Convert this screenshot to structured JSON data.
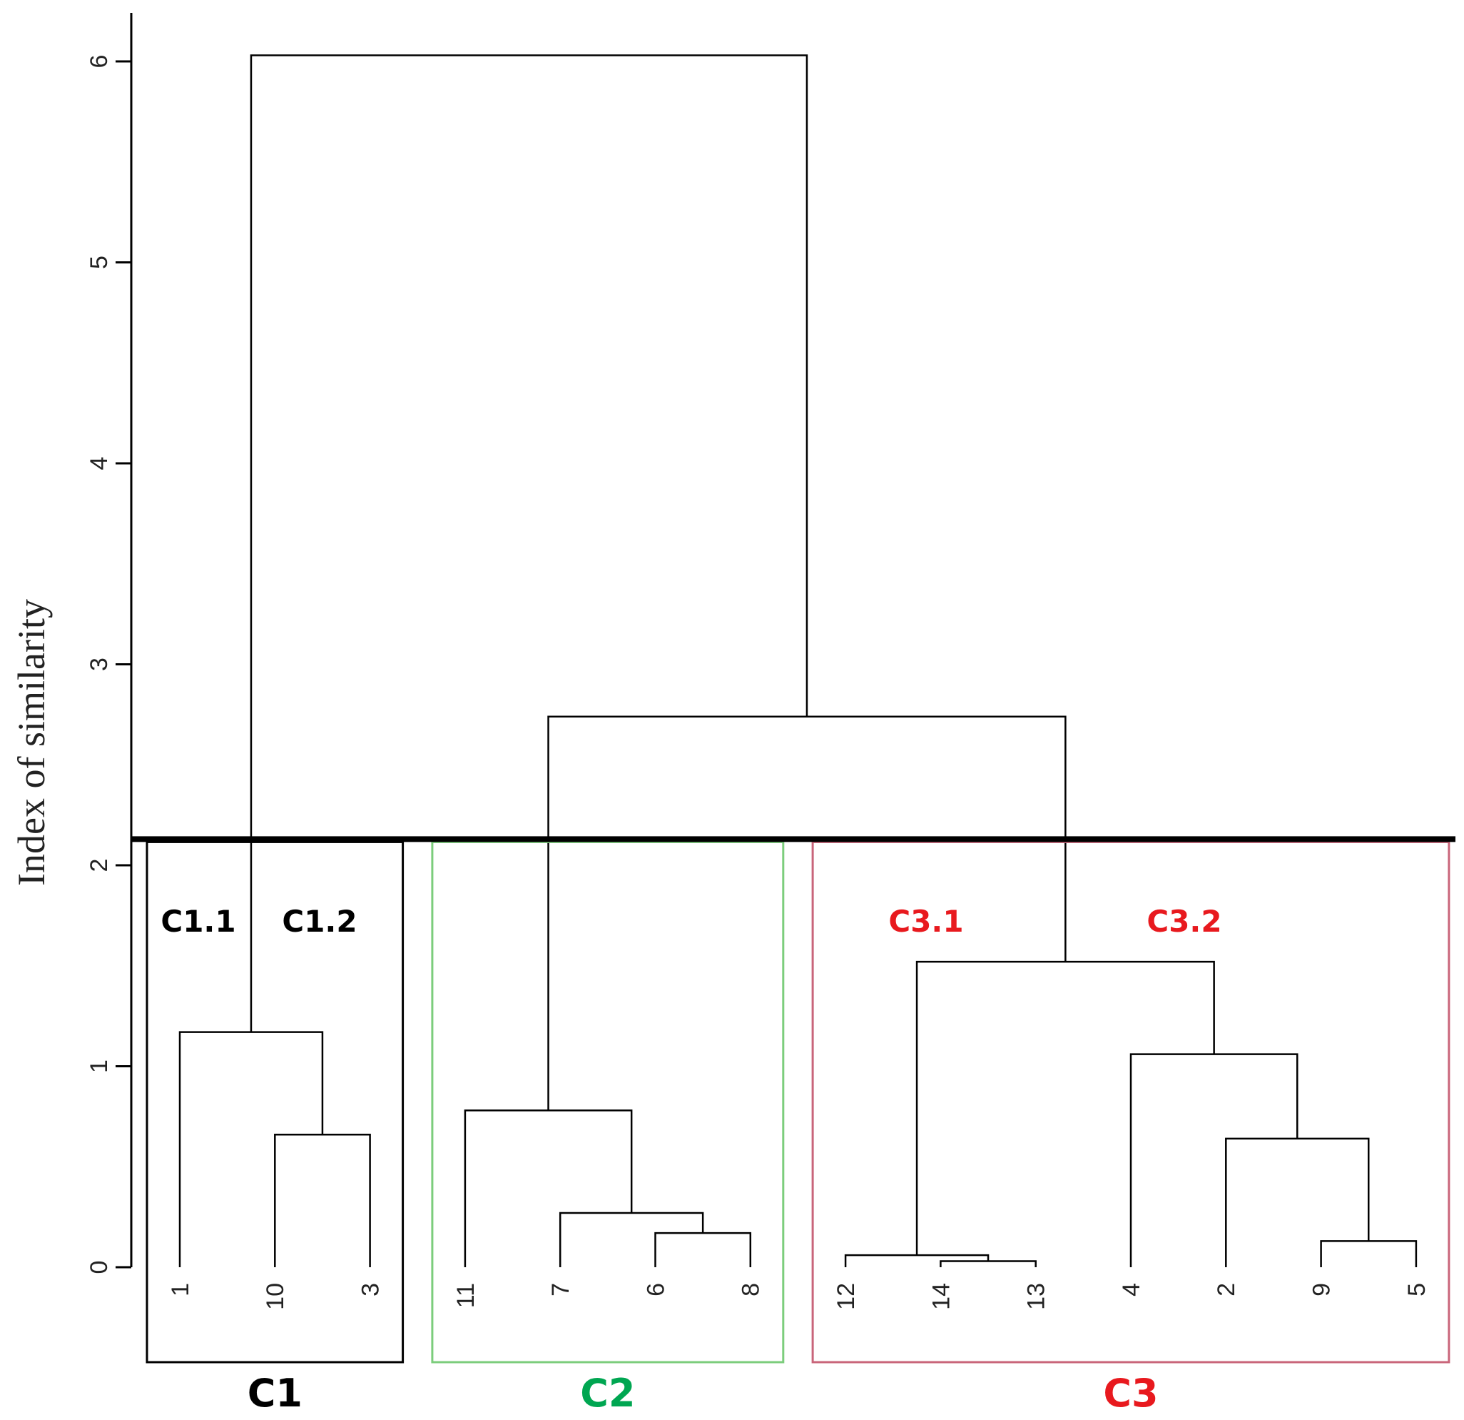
{
  "chart_data": {
    "type": "dendrogram",
    "ylabel": "Index of similarity",
    "ylim": [
      0,
      6
    ],
    "yticks": [
      0,
      1,
      2,
      3,
      4,
      5,
      6
    ],
    "leaves": [
      "1",
      "10",
      "3",
      "11",
      "7",
      "6",
      "8",
      "12",
      "14",
      "13",
      "4",
      "2",
      "9",
      "5"
    ],
    "merges": [
      {
        "id": "m1",
        "left": "13",
        "right": "14",
        "height": 0.03
      },
      {
        "id": "m2",
        "left": "12",
        "right": "m1",
        "height": 0.06
      },
      {
        "id": "m3",
        "left": "9",
        "right": "5",
        "height": 0.13
      },
      {
        "id": "m4",
        "left": "6",
        "right": "8",
        "height": 0.17
      },
      {
        "id": "m5",
        "left": "7",
        "right": "m4",
        "height": 0.27
      },
      {
        "id": "m6",
        "left": "2",
        "right": "m3",
        "height": 0.64
      },
      {
        "id": "m7",
        "left": "10",
        "right": "3",
        "height": 0.66
      },
      {
        "id": "m8",
        "left": "11",
        "right": "m5",
        "height": 0.78
      },
      {
        "id": "m9",
        "left": "4",
        "right": "m6",
        "height": 1.06
      },
      {
        "id": "m10",
        "left": "1",
        "right": "m7",
        "height": 1.17
      },
      {
        "id": "m11",
        "left": "m2",
        "right": "m9",
        "height": 1.52
      },
      {
        "id": "m12",
        "left": "m8",
        "right": "m11",
        "height": 2.74
      },
      {
        "id": "m13",
        "left": "m10",
        "right": "m12",
        "height": 6.03
      }
    ],
    "cut_height": 2.13,
    "clusters": [
      {
        "label": "C1",
        "color": "#000000",
        "box_color": "#000000",
        "leaves": [
          "1",
          "10",
          "3"
        ]
      },
      {
        "label": "C2",
        "color": "#00a651",
        "box_color": "#7ccd7c",
        "leaves": [
          "11",
          "7",
          "6",
          "8"
        ]
      },
      {
        "label": "C3",
        "color": "#e8191e",
        "box_color": "#c9657a",
        "leaves": [
          "12",
          "14",
          "13",
          "4",
          "2",
          "9",
          "5"
        ]
      }
    ],
    "subclusters": [
      {
        "label": "C1.1",
        "color": "#000000"
      },
      {
        "label": "C1.2",
        "color": "#000000"
      },
      {
        "label": "C3.1",
        "color": "#e8191e"
      },
      {
        "label": "C3.2",
        "color": "#e8191e"
      }
    ]
  }
}
